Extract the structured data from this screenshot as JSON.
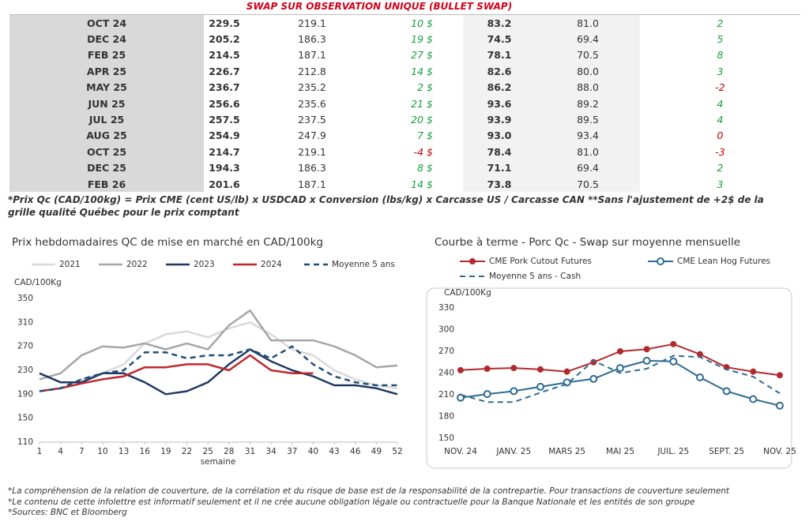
{
  "title": "SWAP SUR OBSERVATION UNIQUE (BULLET SWAP)",
  "table": {
    "rows": [
      [
        "OCT 24",
        "229.5",
        "219.1",
        "10 $",
        "83.2",
        "81.0",
        "2"
      ],
      [
        "DEC 24",
        "205.2",
        "186.3",
        "19 $",
        "74.5",
        "69.4",
        "5"
      ],
      [
        "FEB 25",
        "214.5",
        "187.1",
        "27 $",
        "78.1",
        "70.5",
        "8"
      ],
      [
        "APR 25",
        "226.7",
        "212.8",
        "14 $",
        "82.6",
        "80.0",
        "3"
      ],
      [
        "MAY 25",
        "236.7",
        "235.2",
        "2 $",
        "86.2",
        "88.0",
        "-2"
      ],
      [
        "JUN 25",
        "256.6",
        "235.6",
        "21 $",
        "93.6",
        "89.2",
        "4"
      ],
      [
        "JUL 25",
        "257.5",
        "237.5",
        "20 $",
        "93.9",
        "89.5",
        "4"
      ],
      [
        "AUG 25",
        "254.9",
        "247.9",
        "7 $",
        "93.0",
        "93.4",
        "0"
      ],
      [
        "OCT 25",
        "214.7",
        "219.1",
        "-4 $",
        "78.4",
        "81.0",
        "-3"
      ],
      [
        "DEC 25",
        "194.3",
        "186.3",
        "8 $",
        "71.1",
        "69.4",
        "2"
      ],
      [
        "FEB 26",
        "201.6",
        "187.1",
        "14 $",
        "73.8",
        "70.5",
        "3"
      ]
    ]
  },
  "note": "*Prix Qc (CAD/100kg) = Prix CME (cent US/lb) x USDCAD x Conversion (lbs/kg) x Carcasse US / Carcasse CAN **Sans l'ajustement de +2$ de la grille qualité Québec pour le prix comptant",
  "chart_data": [
    {
      "type": "line",
      "title": "Prix hebdomadaires QC de mise en marché en CAD/100kg",
      "y_label": "CAD/100Kg",
      "x_label": "semaine",
      "x": [
        1,
        4,
        7,
        10,
        13,
        16,
        19,
        22,
        25,
        28,
        31,
        34,
        37,
        40,
        43,
        46,
        49,
        52
      ],
      "xlim": [
        1,
        52
      ],
      "xticks": [
        1,
        4,
        7,
        10,
        13,
        16,
        19,
        22,
        25,
        28,
        31,
        34,
        37,
        40,
        43,
        46,
        49,
        52
      ],
      "ylim": [
        110,
        350
      ],
      "yticks": [
        110,
        150,
        190,
        230,
        270,
        310,
        350
      ],
      "series": [
        {
          "name": "2021",
          "color": "#d9d9d9",
          "dashed": false,
          "values": [
            195,
            200,
            215,
            225,
            240,
            275,
            290,
            295,
            285,
            300,
            310,
            290,
            265,
            255,
            230,
            215,
            205,
            200
          ]
        },
        {
          "name": "2022",
          "color": "#a6a6a6",
          "dashed": false,
          "values": [
            215,
            225,
            255,
            270,
            268,
            275,
            265,
            275,
            265,
            305,
            330,
            280,
            280,
            280,
            270,
            255,
            235,
            238
          ]
        },
        {
          "name": "2023",
          "color": "#1f3864",
          "dashed": false,
          "values": [
            225,
            210,
            210,
            225,
            225,
            210,
            190,
            195,
            210,
            240,
            265,
            245,
            230,
            220,
            205,
            205,
            200,
            190
          ]
        },
        {
          "name": "2024",
          "color": "#c0272d",
          "dashed": false,
          "values": [
            195,
            200,
            208,
            215,
            220,
            235,
            235,
            240,
            240,
            230,
            255,
            230,
            225,
            225,
            null,
            null,
            null,
            null
          ]
        },
        {
          "name": "Moyenne 5 ans",
          "color": "#1f4e79",
          "dashed": true,
          "values": [
            195,
            200,
            215,
            225,
            230,
            260,
            260,
            250,
            255,
            255,
            265,
            250,
            270,
            240,
            220,
            210,
            205,
            205
          ]
        }
      ]
    },
    {
      "type": "line",
      "title": "Courbe à terme - Porc Qc - Swap sur moyenne mensuelle",
      "y_label": "CAD/100Kg",
      "categories": [
        "NOV. 24",
        null,
        "JANV. 25",
        null,
        "MARS 25",
        null,
        "MAI 25",
        null,
        "JUIL. 25",
        null,
        "SEPT. 25",
        null,
        "NOV. 25"
      ],
      "ylim": [
        150,
        330
      ],
      "yticks": [
        150,
        180,
        210,
        240,
        270,
        300,
        330
      ],
      "series": [
        {
          "name": "CME Pork Cutout Futures",
          "color": "#b22a2e",
          "marker": "dot",
          "dashed": false,
          "values": [
            244,
            246,
            247,
            245,
            242,
            255,
            270,
            273,
            280,
            266,
            248,
            242,
            237
          ]
        },
        {
          "name": "CME Lean Hog Futures",
          "color": "#2e6b93",
          "marker": "circle",
          "dashed": false,
          "values": [
            206,
            211,
            215,
            221,
            227,
            232,
            247,
            257,
            256,
            234,
            215,
            204,
            195
          ]
        },
        {
          "name": "Moyenne 5 ans - Cash",
          "color": "#2e6b93",
          "dashed": true,
          "values": [
            210,
            200,
            200,
            213,
            225,
            257,
            240,
            246,
            264,
            262,
            245,
            235,
            212
          ]
        }
      ]
    }
  ],
  "footer": [
    "*La compréhension de la relation de couverture, de la corrélation et du risque de base est de la responsabilité de la contrepartie. Pour transactions de couverture seulement",
    "*Le contenu de cette infolettre est informatif seulement et il ne crée aucune obligation légale ou contractuelle pour la Banque Nationale et les entités de son groupe",
    "*Sources: BNC et Bloomberg"
  ]
}
